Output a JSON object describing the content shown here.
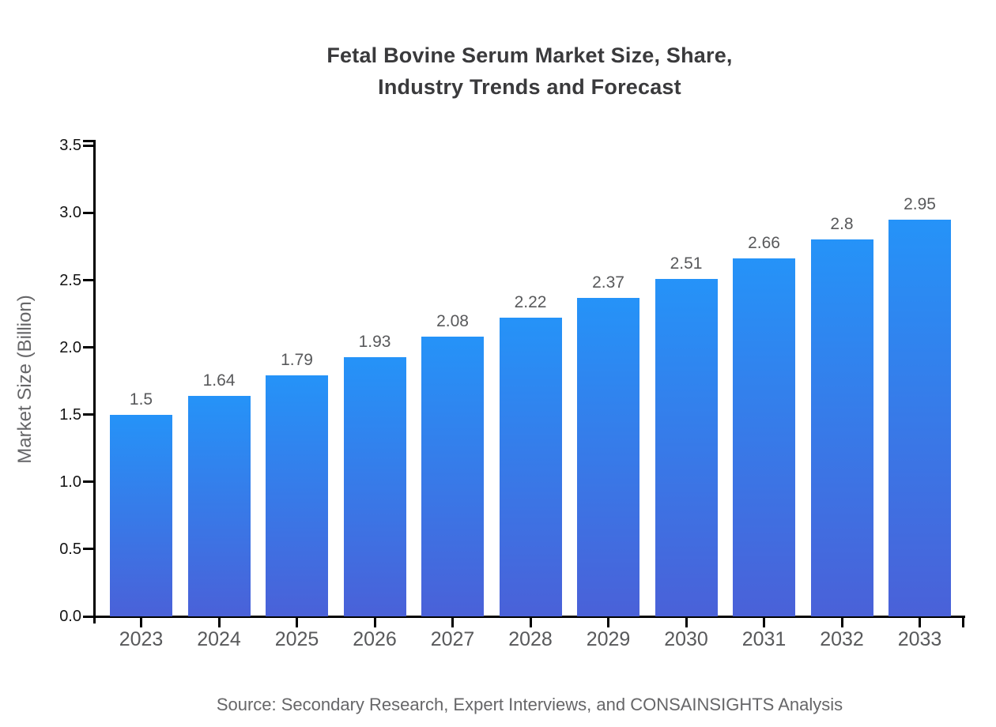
{
  "chart_data": {
    "type": "bar",
    "title_lines": [
      "Fetal Bovine Serum Market Size, Share,",
      "Industry Trends and Forecast"
    ],
    "categories": [
      "2023",
      "2024",
      "2025",
      "2026",
      "2027",
      "2028",
      "2029",
      "2030",
      "2031",
      "2032",
      "2033"
    ],
    "values": [
      1.5,
      1.64,
      1.79,
      1.93,
      2.08,
      2.22,
      2.37,
      2.51,
      2.66,
      2.8,
      2.95
    ],
    "value_labels": [
      "1.5",
      "1.64",
      "1.79",
      "1.93",
      "2.08",
      "2.22",
      "2.37",
      "2.51",
      "2.66",
      "2.8",
      "2.95"
    ],
    "xlabel": "",
    "ylabel": "Market Size (Billion)",
    "ylim": [
      0,
      3.5
    ],
    "ytick_step": 0.5,
    "ytick_labels": [
      "0.0",
      "0.5",
      "1.0",
      "1.5",
      "2.0",
      "2.5",
      "3.0",
      "3.5"
    ],
    "grid": false,
    "legend": null,
    "colors": {
      "bar_gradient_top": "#2593f8",
      "bar_gradient_bottom": "#4a61d8",
      "axis_line": "#000000",
      "title_text": "#3a3a3c",
      "tick_label_text": "#141414",
      "category_label_text": "#58595b",
      "value_label_text": "#58595b",
      "axis_title_text": "#666668",
      "source_text": "#666668"
    }
  },
  "footer": {
    "source_text": "Source: Secondary Research, Expert Interviews, and CONSAINSIGHTS Analysis"
  }
}
